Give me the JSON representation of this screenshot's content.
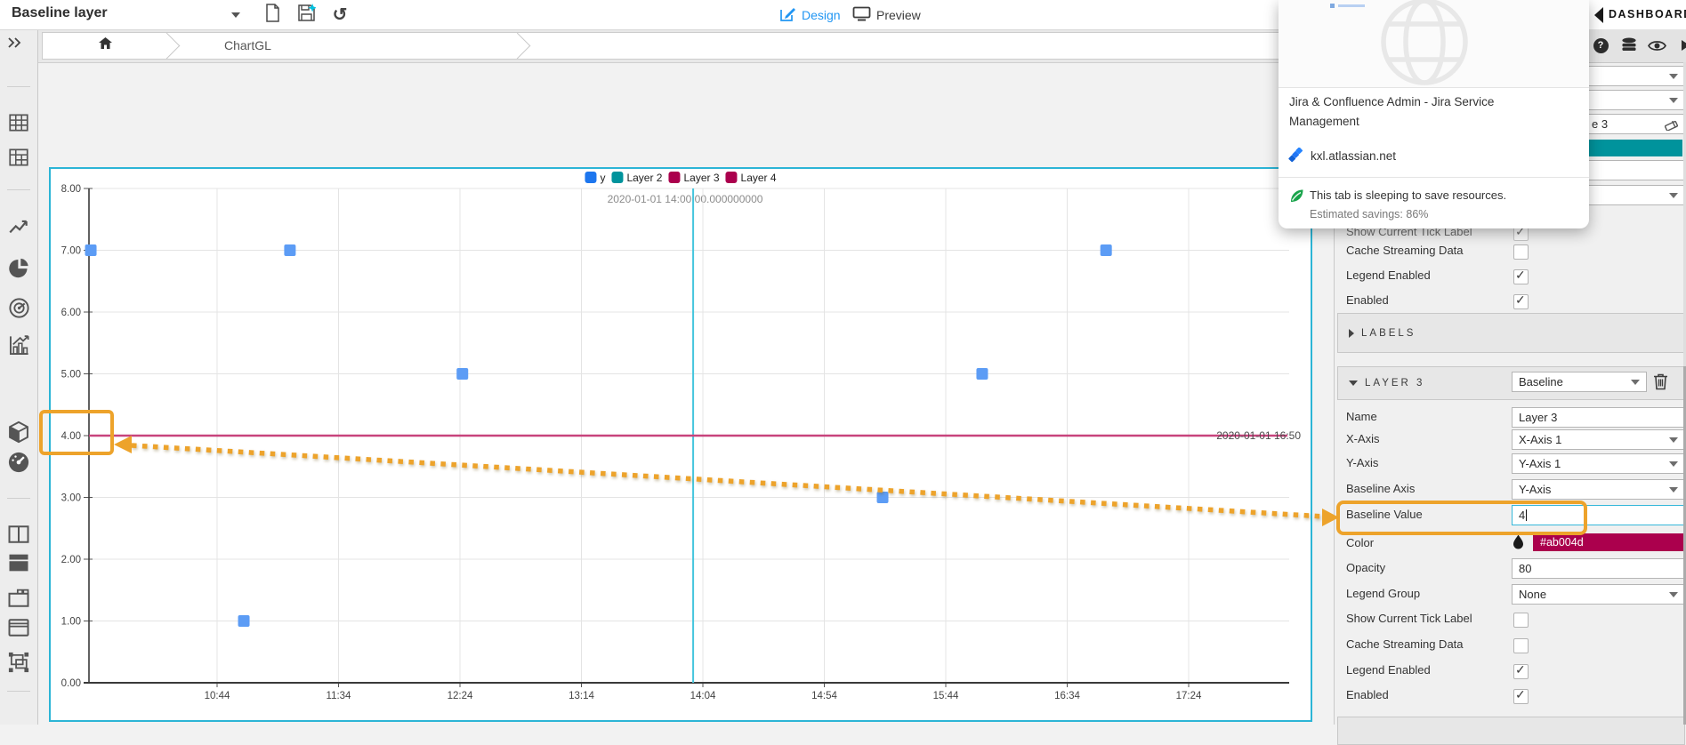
{
  "toolbar": {
    "title": "Baseline layer",
    "design_label": "Design",
    "preview_label": "Preview"
  },
  "breadcrumb": {
    "root": "ChartGL"
  },
  "chart_data": {
    "type": "scatter",
    "x_ticks": [
      "10:44",
      "11:34",
      "12:24",
      "13:14",
      "14:04",
      "14:54",
      "15:44",
      "16:34",
      "17:24"
    ],
    "y_ticks": [
      "8.00",
      "7.00",
      "6.00",
      "5.00",
      "4.00",
      "3.00",
      "2.00",
      "1.00",
      "0.00"
    ],
    "ylim": [
      0,
      8
    ],
    "grid": true,
    "legend_position": "top-center",
    "legend": [
      {
        "label": "y",
        "color": "#1d76ee"
      },
      {
        "label": "Layer 2",
        "color": "#00939c"
      },
      {
        "label": "Layer 3",
        "color": "#ab004d"
      },
      {
        "label": "Layer 4",
        "color": "#ab004d"
      }
    ],
    "series": [
      {
        "name": "y",
        "color": "#5c9cf5",
        "marker": "square",
        "points": [
          {
            "t": "09:52",
            "y": 7
          },
          {
            "t": "10:55",
            "y": 1
          },
          {
            "t": "11:14",
            "y": 7
          },
          {
            "t": "12:25",
            "y": 5
          },
          {
            "t": "15:18",
            "y": 3
          },
          {
            "t": "15:59",
            "y": 5
          },
          {
            "t": "16:50",
            "y": 7
          }
        ]
      }
    ],
    "baseline": {
      "value": 4,
      "color": "#c8437c",
      "label": "2020-01-01 16:50"
    },
    "current_tick": {
      "time": "14:00",
      "color": "#45c6dd",
      "label": "2020-01-01 14:00:00.000000000"
    }
  },
  "right_panel": {
    "header": "DASHBOARDS",
    "top_rows": [
      {
        "type": "dropdown",
        "value": ""
      },
      {
        "type": "dropdown",
        "value": ""
      },
      {
        "type": "input_eraser",
        "value": "e 3"
      },
      {
        "type": "swatch",
        "color": "#00939c",
        "value": ""
      },
      {
        "type": "input",
        "value": ""
      },
      {
        "type": "dropdown",
        "value": ""
      }
    ],
    "general_rows": [
      {
        "label": "Show Current Tick Label",
        "type": "checkbox",
        "checked": true,
        "faded": true
      },
      {
        "label": "Cache Streaming Data",
        "type": "checkbox",
        "checked": false
      },
      {
        "label": "Legend Enabled",
        "type": "checkbox",
        "checked": true
      },
      {
        "label": "Enabled",
        "type": "checkbox",
        "checked": true
      }
    ],
    "labels_section_title": "LABELS",
    "layer3": {
      "title": "LAYER 3",
      "type_value": "Baseline",
      "rows": [
        {
          "label": "Name",
          "type": "input",
          "value": "Layer 3"
        },
        {
          "label": "X-Axis",
          "type": "dropdown",
          "value": "X-Axis 1"
        },
        {
          "label": "Y-Axis",
          "type": "dropdown",
          "value": "Y-Axis 1"
        },
        {
          "label": "Baseline Axis",
          "type": "dropdown",
          "value": "Y-Axis"
        },
        {
          "label": "Baseline Value",
          "type": "input",
          "value": "4",
          "focused": true
        },
        {
          "label": "Color",
          "type": "color",
          "value": "#ab004d"
        },
        {
          "label": "Opacity",
          "type": "input",
          "value": "80"
        },
        {
          "label": "Legend Group",
          "type": "dropdown",
          "value": "None"
        },
        {
          "label": "Show Current Tick Label",
          "type": "checkbox",
          "checked": false
        },
        {
          "label": "Cache Streaming Data",
          "type": "checkbox",
          "checked": false
        },
        {
          "label": "Legend Enabled",
          "type": "checkbox",
          "checked": true
        },
        {
          "label": "Enabled",
          "type": "checkbox",
          "checked": true
        }
      ]
    }
  },
  "popup": {
    "title": "Jira & Confluence Admin - Jira Service Management",
    "site": "kxl.atlassian.net",
    "sleep_line1": "This tab is sleeping to save resources.",
    "sleep_line2": "Estimated savings: 86%"
  }
}
